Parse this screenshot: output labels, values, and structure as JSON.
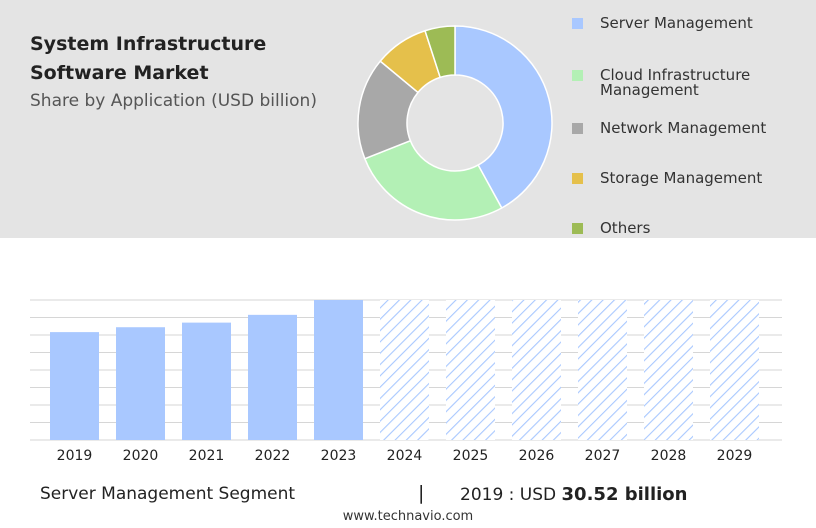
{
  "header": {
    "title": "System Infrastructure Software Market",
    "subtitle": "Share by Application (USD billion)"
  },
  "chart_data": [
    {
      "type": "pie",
      "style": "donut",
      "categories": [
        "Server Management",
        "Cloud Infrastructure Management",
        "Network Management",
        "Storage Management",
        "Others"
      ],
      "values": [
        42,
        27,
        17,
        9,
        5
      ],
      "colors": [
        "#a9c8ff",
        "#b3f0b5",
        "#a8a8a8",
        "#e5c04b",
        "#9dbb55"
      ],
      "legend_position": "right"
    },
    {
      "type": "bar",
      "categories": [
        "2019",
        "2020",
        "2021",
        "2022",
        "2023",
        "2024",
        "2025",
        "2026",
        "2027",
        "2028",
        "2029"
      ],
      "values": [
        30.52,
        31.9,
        33.2,
        35.4,
        39.6,
        null,
        null,
        null,
        null,
        null,
        null
      ],
      "forecast_start": "2024",
      "bar_color": "#a9c8ff",
      "forecast_color": "#a9c8ff",
      "ylim": [
        0,
        39.6
      ],
      "grid": true,
      "title": "",
      "xlabel": "",
      "ylabel": ""
    }
  ],
  "footer": {
    "segment": "Server Management Segment",
    "separator": "|",
    "year_label": "2019 : USD",
    "value": "30.52 billion",
    "site": "www.technavio.com"
  }
}
